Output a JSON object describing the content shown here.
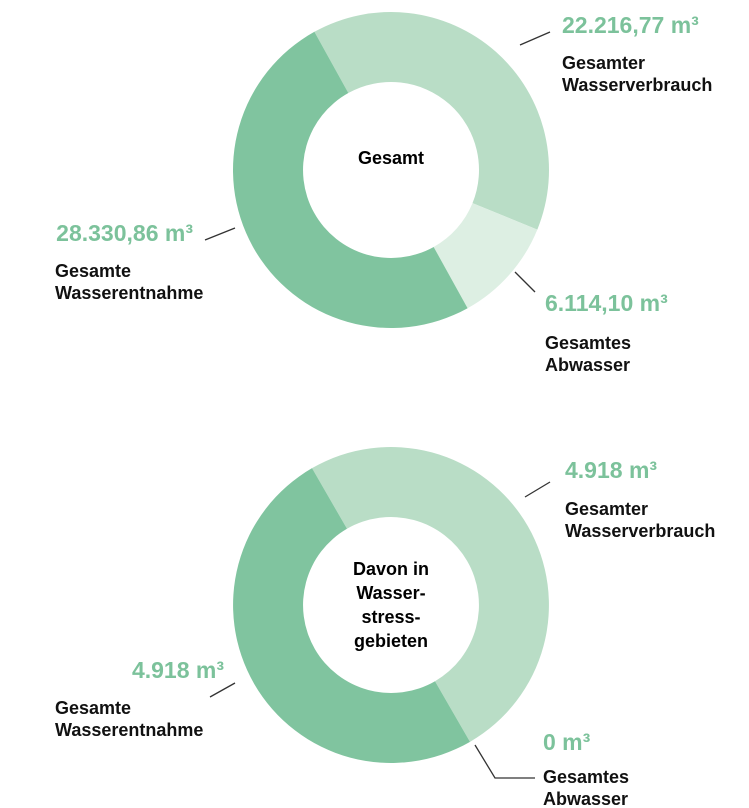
{
  "chart_data": [
    {
      "type": "pie",
      "center_label": "Gesamt",
      "categories": [
        "Gesamter Wasserverbrauch",
        "Gesamtes Abwasser",
        "Gesamte Wasserentnahme"
      ],
      "values": [
        22216.77,
        6114.1,
        28330.86
      ],
      "value_labels": [
        "22.216,77 m³",
        "6.114,10 m³",
        "28.330,86 m³"
      ],
      "colors": [
        "#b9ddc6",
        "#ddefe3",
        "#80c49f"
      ]
    },
    {
      "type": "pie",
      "center_label": "Davon in Wasser-stress-gebieten",
      "categories": [
        "Gesamter Wasserverbrauch",
        "Gesamtes Abwasser",
        "Gesamte Wasserentnahme"
      ],
      "values": [
        4918,
        0,
        4918
      ],
      "value_labels": [
        "4.918 m³",
        "0 m³",
        "4.918 m³"
      ],
      "colors": [
        "#b9ddc6",
        "#ddefe3",
        "#80c49f"
      ]
    }
  ]
}
